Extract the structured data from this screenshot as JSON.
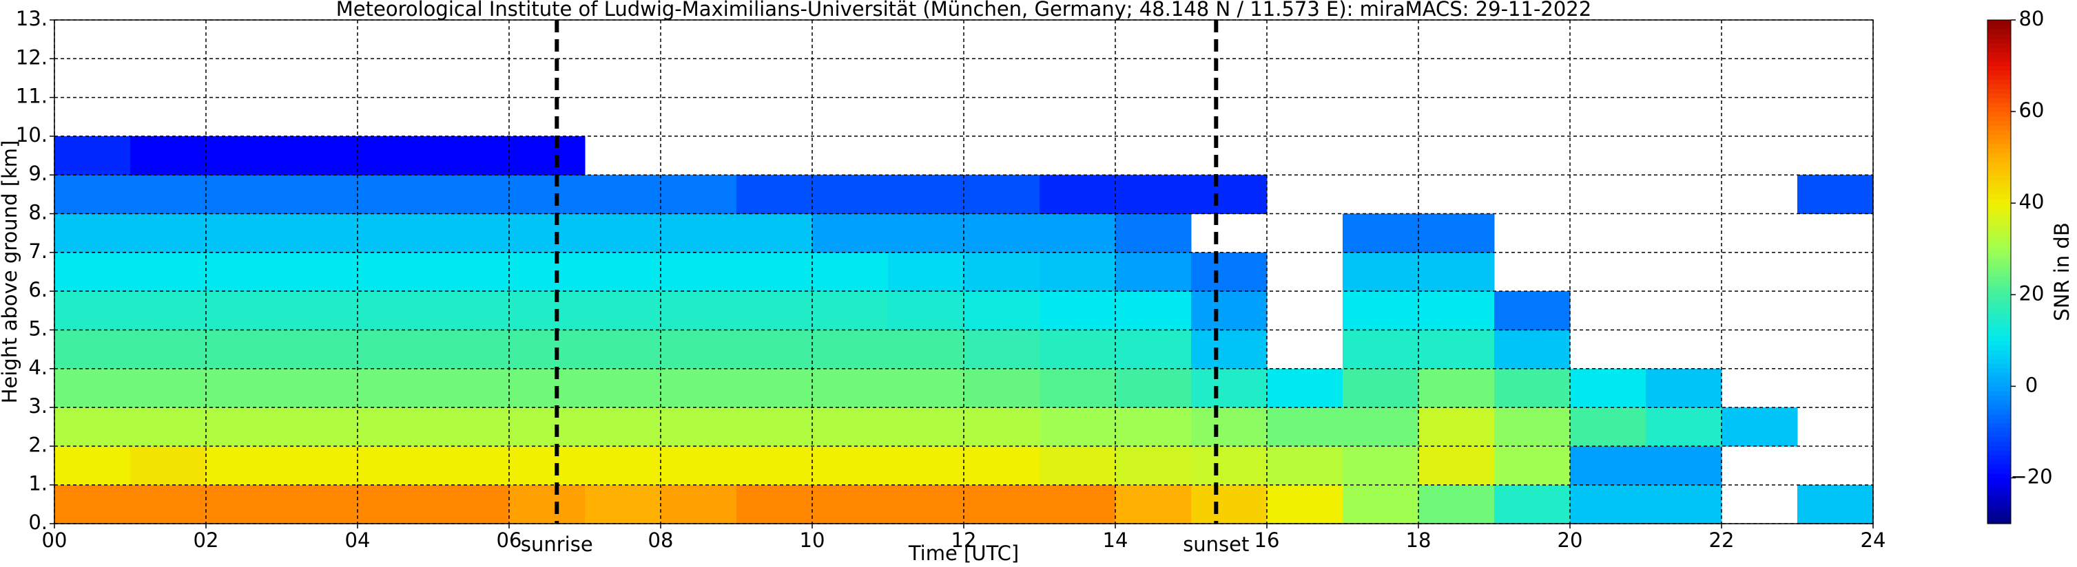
{
  "chart_data": {
    "type": "heatmap",
    "title": "Meteorological Institute of Ludwig-Maximilians-Universität (München, Germany; 48.148 N / 11.573 E):    miraMACS: 29-11-2022",
    "xlabel": "Time [UTC]",
    "ylabel": "Height above ground [km]",
    "colorbar_label": "SNR in dB",
    "xlim": [
      0,
      24
    ],
    "ylim": [
      0,
      13
    ],
    "xticks": [
      {
        "value": 0,
        "label": "00"
      },
      {
        "value": 2,
        "label": "02"
      },
      {
        "value": 4,
        "label": "04"
      },
      {
        "value": 6,
        "label": "06"
      },
      {
        "value": 8,
        "label": "08"
      },
      {
        "value": 10,
        "label": "10"
      },
      {
        "value": 12,
        "label": "12"
      },
      {
        "value": 14,
        "label": "14"
      },
      {
        "value": 16,
        "label": "16"
      },
      {
        "value": 18,
        "label": "18"
      },
      {
        "value": 20,
        "label": "20"
      },
      {
        "value": 22,
        "label": "22"
      },
      {
        "value": 24,
        "label": "24"
      }
    ],
    "yticks": [
      {
        "value": 0,
        "label": "0."
      },
      {
        "value": 1,
        "label": "1."
      },
      {
        "value": 2,
        "label": "2."
      },
      {
        "value": 3,
        "label": "3."
      },
      {
        "value": 4,
        "label": "4."
      },
      {
        "value": 5,
        "label": "5."
      },
      {
        "value": 6,
        "label": "6."
      },
      {
        "value": 7,
        "label": "7."
      },
      {
        "value": 8,
        "label": "8."
      },
      {
        "value": 9,
        "label": "9."
      },
      {
        "value": 10,
        "label": "10."
      },
      {
        "value": 11,
        "label": "11."
      },
      {
        "value": 12,
        "label": "12."
      },
      {
        "value": 13,
        "label": "13."
      }
    ],
    "grid": true,
    "clim": [
      -30,
      80
    ],
    "cticks": [
      {
        "value": -20,
        "label": "−20"
      },
      0,
      20,
      40,
      60,
      80
    ],
    "colormap": [
      "#00007f",
      "#0000ff",
      "#0050ff",
      "#00a0ff",
      "#00e8f0",
      "#40f0a0",
      "#a0ff50",
      "#f0f000",
      "#ffb000",
      "#ff6000",
      "#e81000",
      "#8b0000"
    ],
    "annotations": [
      {
        "x": 6.63,
        "text": "sunrise"
      },
      {
        "x": 15.33,
        "text": "sunset"
      }
    ],
    "xbins": [
      0,
      1,
      2,
      3,
      4,
      5,
      6,
      7,
      8,
      9,
      10,
      11,
      12,
      13,
      14,
      15,
      16,
      17,
      18,
      19,
      20,
      21,
      22,
      23,
      24
    ],
    "ybins": [
      0,
      1,
      2,
      3,
      4,
      5,
      6,
      7,
      8,
      9,
      10,
      11,
      12,
      13
    ],
    "z": [
      [
        55,
        55,
        55,
        55,
        55,
        55,
        52,
        50,
        52,
        55,
        55,
        55,
        55,
        55,
        50,
        45,
        40,
        30,
        25,
        15,
        5,
        5,
        null,
        5
      ],
      [
        40,
        42,
        40,
        40,
        40,
        40,
        40,
        40,
        40,
        40,
        40,
        40,
        40,
        38,
        36,
        35,
        33,
        30,
        38,
        30,
        0,
        0,
        null,
        null
      ],
      [
        32,
        32,
        32,
        32,
        32,
        32,
        32,
        32,
        32,
        32,
        32,
        32,
        32,
        30,
        30,
        28,
        25,
        25,
        35,
        28,
        20,
        15,
        5,
        null
      ],
      [
        25,
        25,
        25,
        25,
        25,
        25,
        25,
        25,
        25,
        25,
        25,
        25,
        24,
        22,
        20,
        15,
        10,
        20,
        25,
        20,
        10,
        5,
        null,
        null
      ],
      [
        20,
        20,
        20,
        20,
        20,
        20,
        20,
        20,
        20,
        20,
        20,
        20,
        18,
        16,
        15,
        5,
        null,
        15,
        15,
        5,
        null,
        null,
        null,
        null
      ],
      [
        15,
        15,
        15,
        15,
        15,
        15,
        15,
        15,
        15,
        15,
        15,
        14,
        12,
        10,
        10,
        0,
        null,
        10,
        10,
        -5,
        null,
        null,
        null,
        null
      ],
      [
        10,
        10,
        10,
        10,
        10,
        10,
        10,
        10,
        10,
        10,
        10,
        8,
        6,
        5,
        0,
        -5,
        null,
        5,
        5,
        null,
        null,
        null,
        null,
        null
      ],
      [
        5,
        5,
        5,
        5,
        5,
        5,
        5,
        5,
        5,
        5,
        0,
        0,
        0,
        0,
        -5,
        null,
        null,
        -5,
        -5,
        null,
        null,
        null,
        null,
        null
      ],
      [
        -5,
        -5,
        -5,
        -5,
        -5,
        -5,
        -5,
        -5,
        -5,
        -10,
        -10,
        -10,
        -10,
        -15,
        -15,
        -15,
        null,
        null,
        null,
        null,
        null,
        null,
        null,
        -10
      ],
      [
        -15,
        -20,
        -20,
        -20,
        -20,
        -20,
        -20,
        null,
        null,
        null,
        null,
        null,
        null,
        null,
        null,
        null,
        null,
        null,
        null,
        null,
        null,
        null,
        null,
        null
      ],
      [
        null,
        null,
        null,
        null,
        null,
        null,
        null,
        null,
        null,
        null,
        null,
        null,
        null,
        null,
        null,
        null,
        null,
        null,
        null,
        null,
        null,
        null,
        null,
        null
      ],
      [
        null,
        null,
        null,
        null,
        null,
        null,
        null,
        null,
        null,
        null,
        null,
        null,
        null,
        null,
        null,
        null,
        null,
        null,
        null,
        null,
        null,
        null,
        null,
        null
      ],
      [
        null,
        null,
        null,
        null,
        null,
        null,
        null,
        null,
        null,
        null,
        null,
        null,
        null,
        null,
        null,
        null,
        null,
        null,
        null,
        null,
        null,
        null,
        null,
        null
      ]
    ]
  }
}
